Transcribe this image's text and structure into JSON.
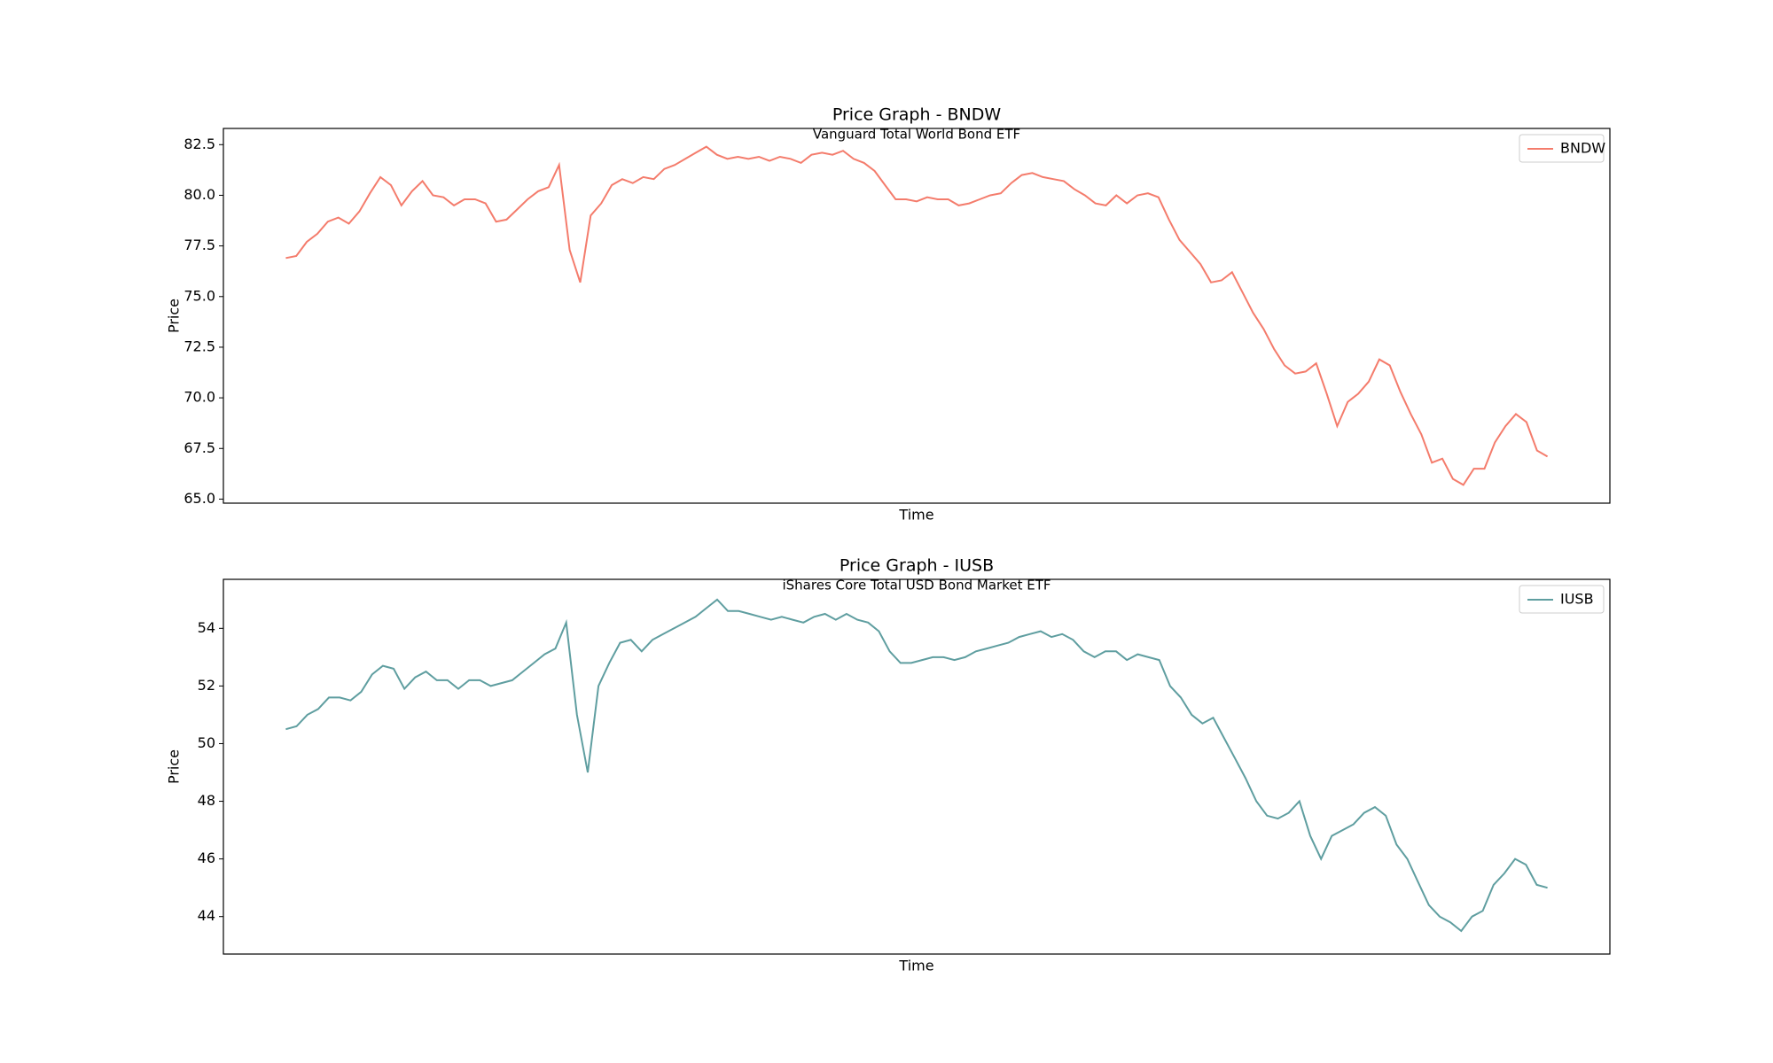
{
  "chart_data": [
    {
      "type": "line",
      "title": "Price Graph - BNDW",
      "subtitle": "Vanguard Total World Bond ETF",
      "x_label": "Time",
      "y_label": "Price",
      "legend": "upper right",
      "ylim": [
        64.8,
        83.3
      ],
      "yticks": [
        {
          "value": 65,
          "label": "65.0"
        },
        {
          "value": 67.5,
          "label": "67.5"
        },
        {
          "value": 70,
          "label": "70.0"
        },
        {
          "value": 72.5,
          "label": "72.5"
        },
        {
          "value": 75,
          "label": "75.0"
        },
        {
          "value": 77.5,
          "label": "77.5"
        },
        {
          "value": 80,
          "label": "80.0"
        },
        {
          "value": 82.5,
          "label": "82.5"
        }
      ],
      "series": [
        {
          "name": "BNDW",
          "color": "#f47c6c",
          "values": [
            76.9,
            77.0,
            77.7,
            78.1,
            78.7,
            78.9,
            78.6,
            79.2,
            80.1,
            80.9,
            80.5,
            79.5,
            80.2,
            80.7,
            80.0,
            79.9,
            79.5,
            79.8,
            79.8,
            79.6,
            78.7,
            78.8,
            79.3,
            79.8,
            80.2,
            80.4,
            81.5,
            77.3,
            75.7,
            79.0,
            79.6,
            80.5,
            80.8,
            80.6,
            80.9,
            80.8,
            81.3,
            81.5,
            81.8,
            82.1,
            82.4,
            82.0,
            81.8,
            81.9,
            81.8,
            81.9,
            81.7,
            81.9,
            81.8,
            81.6,
            82.0,
            82.1,
            82.0,
            82.2,
            81.8,
            81.6,
            81.2,
            80.5,
            79.8,
            79.8,
            79.7,
            79.9,
            79.8,
            79.8,
            79.5,
            79.6,
            79.8,
            80.0,
            80.1,
            80.6,
            81.0,
            81.1,
            80.9,
            80.8,
            80.7,
            80.3,
            80.0,
            79.6,
            79.5,
            80.0,
            79.6,
            80.0,
            80.1,
            79.9,
            78.8,
            77.8,
            77.2,
            76.6,
            75.7,
            75.8,
            76.2,
            75.2,
            74.2,
            73.4,
            72.4,
            71.6,
            71.2,
            71.3,
            71.7,
            70.2,
            68.6,
            69.8,
            70.2,
            70.8,
            71.9,
            71.6,
            70.3,
            69.2,
            68.2,
            66.8,
            67.0,
            66.0,
            65.7,
            66.5,
            66.5,
            67.8,
            68.6,
            69.2,
            68.8,
            67.4,
            67.1
          ]
        }
      ]
    },
    {
      "type": "line",
      "title": "Price Graph - IUSB",
      "subtitle": "iShares Core Total USD Bond Market ETF",
      "x_label": "Time",
      "y_label": "Price",
      "legend": "upper right",
      "ylim": [
        42.7,
        55.7
      ],
      "yticks": [
        44,
        46,
        48,
        50,
        52,
        54
      ],
      "series": [
        {
          "name": "IUSB",
          "color": "#5f9ea0",
          "values": [
            50.5,
            50.6,
            51.0,
            51.2,
            51.6,
            51.6,
            51.5,
            51.8,
            52.4,
            52.7,
            52.6,
            51.9,
            52.3,
            52.5,
            52.2,
            52.2,
            51.9,
            52.2,
            52.2,
            52.0,
            52.1,
            52.2,
            52.5,
            52.8,
            53.1,
            53.3,
            54.2,
            51.0,
            49.0,
            52.0,
            52.8,
            53.5,
            53.6,
            53.2,
            53.6,
            53.8,
            54.0,
            54.2,
            54.4,
            54.7,
            55.0,
            54.6,
            54.6,
            54.5,
            54.4,
            54.3,
            54.4,
            54.3,
            54.2,
            54.4,
            54.5,
            54.3,
            54.5,
            54.3,
            54.2,
            53.9,
            53.2,
            52.8,
            52.8,
            52.9,
            53.0,
            53.0,
            52.9,
            53.0,
            53.2,
            53.3,
            53.4,
            53.5,
            53.7,
            53.8,
            53.9,
            53.7,
            53.8,
            53.6,
            53.2,
            53.0,
            53.2,
            53.2,
            52.9,
            53.1,
            53.0,
            52.9,
            52.0,
            51.6,
            51.0,
            50.7,
            50.9,
            50.2,
            49.5,
            48.8,
            48.0,
            47.5,
            47.4,
            47.6,
            48.0,
            46.8,
            46.0,
            46.8,
            47.0,
            47.2,
            47.6,
            47.8,
            47.5,
            46.5,
            46.0,
            45.2,
            44.4,
            44.0,
            43.8,
            43.5,
            44.0,
            44.2,
            45.1,
            45.5,
            46.0,
            45.8,
            45.1,
            45.0
          ]
        }
      ]
    }
  ]
}
